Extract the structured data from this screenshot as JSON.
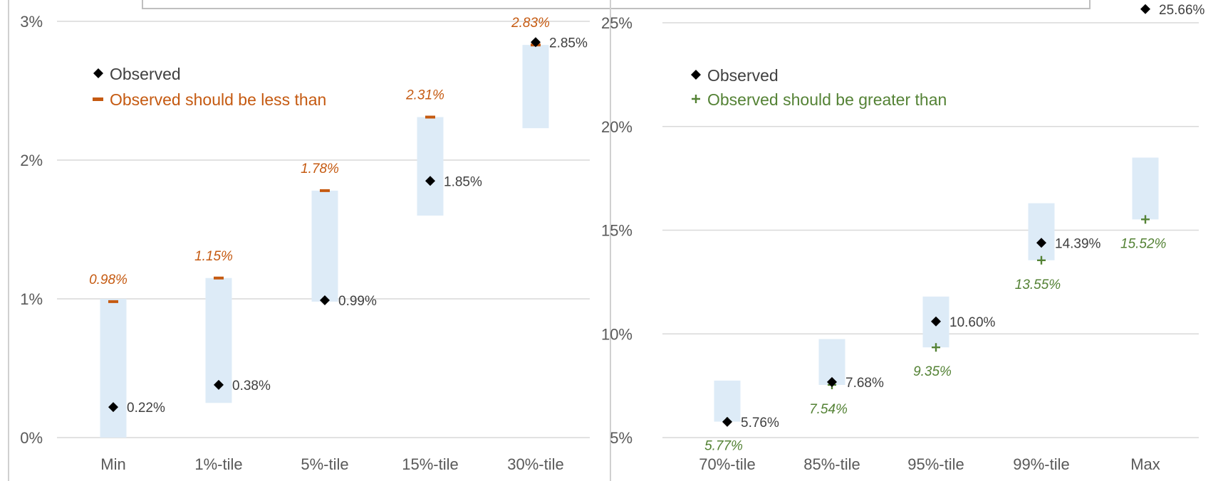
{
  "chart_data": [
    {
      "type": "range-marker",
      "ylim": [
        0,
        3
      ],
      "yticks": [
        {
          "value": 0,
          "label": "0%"
        },
        {
          "value": 1,
          "label": "1%"
        },
        {
          "value": 2,
          "label": "2%"
        },
        {
          "value": 3,
          "label": "3%"
        }
      ],
      "categories": [
        "Min",
        "1%-tile",
        "5%-tile",
        "15%-tile",
        "30%-tile"
      ],
      "ranges": [
        [
          0.0,
          1.0
        ],
        [
          0.25,
          1.15
        ],
        [
          0.98,
          1.78
        ],
        [
          1.6,
          2.31
        ],
        [
          2.23,
          2.83
        ]
      ],
      "observed": {
        "name": "Observed",
        "values": [
          0.22,
          0.38,
          0.99,
          1.85,
          2.85
        ],
        "labels": [
          "0.22%",
          "0.38%",
          "0.99%",
          "1.85%",
          "2.85%"
        ]
      },
      "bound": {
        "name": "Observed should be less than",
        "values": [
          0.98,
          1.15,
          1.78,
          2.31,
          2.83
        ],
        "labels": [
          "0.98%",
          "1.15%",
          "1.78%",
          "2.31%",
          "2.83%"
        ],
        "color": "#C55A11",
        "marker": "dash",
        "label_position": "above"
      },
      "legend_position": "top-left",
      "grid": true
    },
    {
      "type": "range-marker",
      "ylim": [
        5,
        25
      ],
      "yticks": [
        {
          "value": 5,
          "label": "5%"
        },
        {
          "value": 10,
          "label": "10%"
        },
        {
          "value": 15,
          "label": "15%"
        },
        {
          "value": 20,
          "label": "20%"
        },
        {
          "value": 25,
          "label": "25%"
        }
      ],
      "categories": [
        "70%-tile",
        "85%-tile",
        "95%-tile",
        "99%-tile",
        "Max"
      ],
      "ranges": [
        [
          5.77,
          7.75
        ],
        [
          7.54,
          9.75
        ],
        [
          9.35,
          11.8
        ],
        [
          13.55,
          16.3
        ],
        [
          15.52,
          18.5
        ]
      ],
      "observed": {
        "name": "Observed",
        "values": [
          5.76,
          7.68,
          10.6,
          14.39,
          25.66
        ],
        "labels": [
          "5.76%",
          "7.68%",
          "10.60%",
          "14.39%",
          "25.66%"
        ]
      },
      "bound": {
        "name": "Observed should be greater than",
        "values": [
          5.77,
          7.54,
          9.35,
          13.55,
          15.52
        ],
        "labels": [
          "5.77%",
          "7.54%",
          "9.35%",
          "13.55%",
          "15.52%"
        ],
        "color": "#548235",
        "marker": "plus",
        "label_position": "below"
      },
      "legend_position": "top-left",
      "grid": true
    }
  ],
  "colors": {
    "range": "#DDEBF7",
    "observed": "#000000",
    "grid": "#D9D9D9",
    "axis_text": "#595959"
  }
}
